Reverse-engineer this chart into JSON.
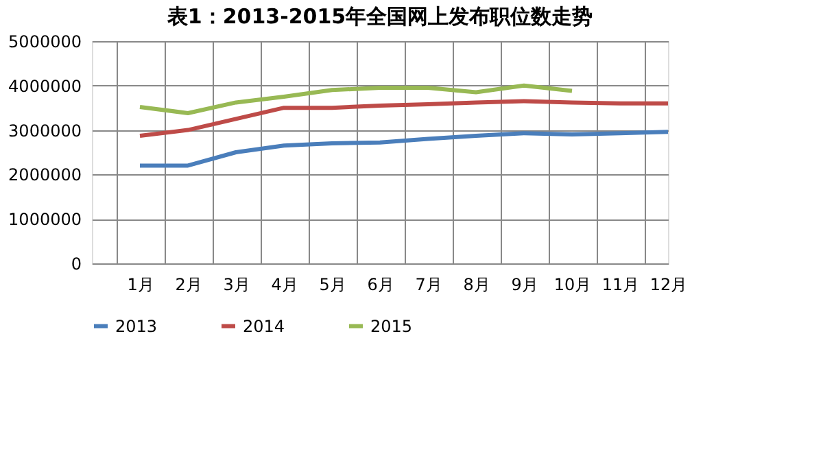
{
  "chart_data": {
    "type": "line",
    "title": "表1：2013-2015年全国网上发布职位数走势",
    "categories": [
      "1月",
      "2月",
      "3月",
      "4月",
      "5月",
      "6月",
      "7月",
      "8月",
      "9月",
      "10月",
      "11月",
      "12月"
    ],
    "series": [
      {
        "name": "2013",
        "color": "#4a7ebb",
        "values": [
          2200000,
          2200000,
          2500000,
          2650000,
          2700000,
          2720000,
          2800000,
          2870000,
          2930000,
          2900000,
          2930000,
          2960000
        ]
      },
      {
        "name": "2014",
        "color": "#be4b48",
        "values": [
          2870000,
          3000000,
          3250000,
          3500000,
          3500000,
          3550000,
          3580000,
          3620000,
          3650000,
          3620000,
          3600000,
          3600000
        ]
      },
      {
        "name": "2015",
        "color": "#98b954",
        "values": [
          3520000,
          3380000,
          3620000,
          3750000,
          3900000,
          3950000,
          3950000,
          3850000,
          4000000,
          3880000,
          null,
          null
        ]
      }
    ],
    "ylim": [
      0,
      5000000
    ],
    "yticks": [
      0,
      1000000,
      2000000,
      3000000,
      4000000,
      5000000
    ],
    "grid": true,
    "legend": "bottom",
    "marker": "none",
    "line_style": "solid"
  }
}
